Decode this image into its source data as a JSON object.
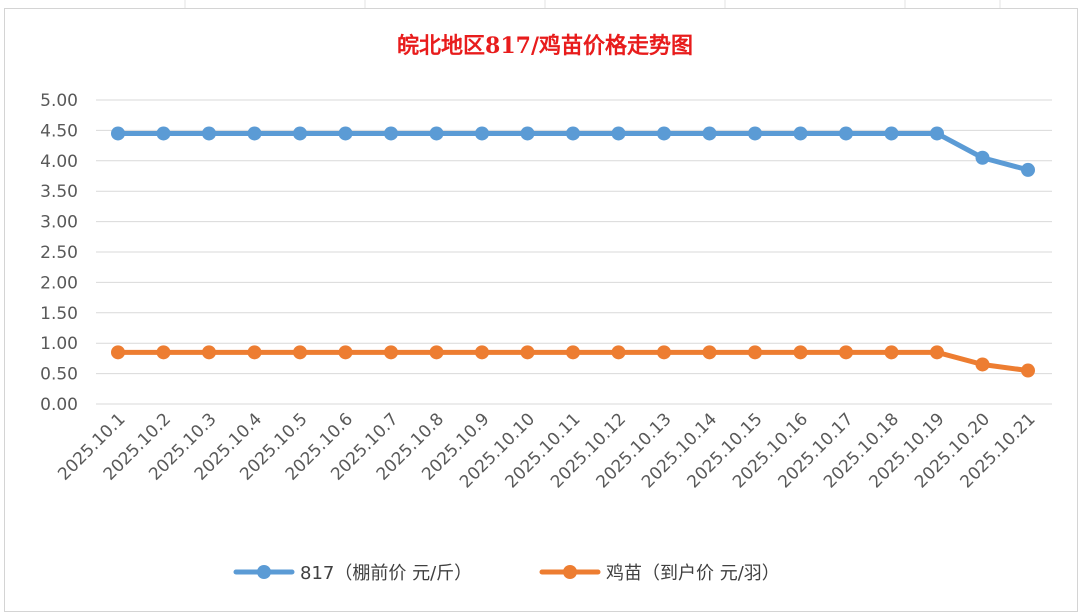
{
  "chart_data": {
    "type": "line",
    "title": "皖北地区817/鸡苗价格走势图",
    "xlabel": "",
    "ylabel": "",
    "categories": [
      "2025.10.1",
      "2025.10.2",
      "2025.10.3",
      "2025.10.4",
      "2025.10.5",
      "2025.10.6",
      "2025.10.7",
      "2025.10.8",
      "2025.10.9",
      "2025.10.10",
      "2025.10.11",
      "2025.10.12",
      "2025.10.13",
      "2025.10.14",
      "2025.10.15",
      "2025.10.16",
      "2025.10.17",
      "2025.10.18",
      "2025.10.19",
      "2025.10.20",
      "2025.10.21"
    ],
    "yticks": [
      "0.00",
      "0.50",
      "1.00",
      "1.50",
      "2.00",
      "2.50",
      "3.00",
      "3.50",
      "4.00",
      "4.50",
      "5.00"
    ],
    "ylim": [
      0,
      5
    ],
    "grid": true,
    "legend_position": "bottom",
    "series": [
      {
        "name": "817（棚前价 元/斤）",
        "color": "#5b9bd5",
        "values": [
          4.45,
          4.45,
          4.45,
          4.45,
          4.45,
          4.45,
          4.45,
          4.45,
          4.45,
          4.45,
          4.45,
          4.45,
          4.45,
          4.45,
          4.45,
          4.45,
          4.45,
          4.45,
          4.45,
          4.05,
          3.85
        ]
      },
      {
        "name": "鸡苗（到户价 元/羽）",
        "color": "#ed7d31",
        "values": [
          0.85,
          0.85,
          0.85,
          0.85,
          0.85,
          0.85,
          0.85,
          0.85,
          0.85,
          0.85,
          0.85,
          0.85,
          0.85,
          0.85,
          0.85,
          0.85,
          0.85,
          0.85,
          0.85,
          0.65,
          0.55
        ]
      }
    ]
  }
}
